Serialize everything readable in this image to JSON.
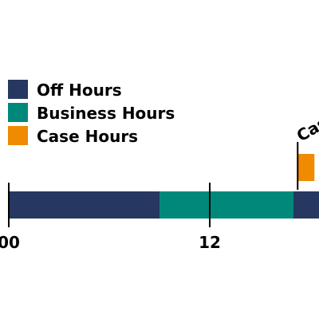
{
  "chart_data": {
    "type": "bar",
    "orientation": "horizontal-timeline",
    "x_unit": "hour",
    "ticks": [
      {
        "value": 0,
        "label": "00"
      },
      {
        "value": 12,
        "label": "12"
      }
    ],
    "segments": [
      {
        "series": "Off Hours",
        "start": 0,
        "end": 9
      },
      {
        "series": "Business Hours",
        "start": 9,
        "end": 17
      },
      {
        "series": "Off Hours",
        "start": 17,
        "end": 24
      }
    ],
    "case_hours": {
      "series": "Case Hours",
      "start": 17.25,
      "end": 18.25,
      "marker_at": 17.25,
      "annotation_label": "Cas"
    },
    "legend": [
      {
        "label": "Off Hours",
        "color": "#263760"
      },
      {
        "label": "Business Hours",
        "color": "#00897b"
      },
      {
        "label": "Case Hours",
        "color": "#f08a00"
      }
    ],
    "legend_placement": "top-left"
  }
}
